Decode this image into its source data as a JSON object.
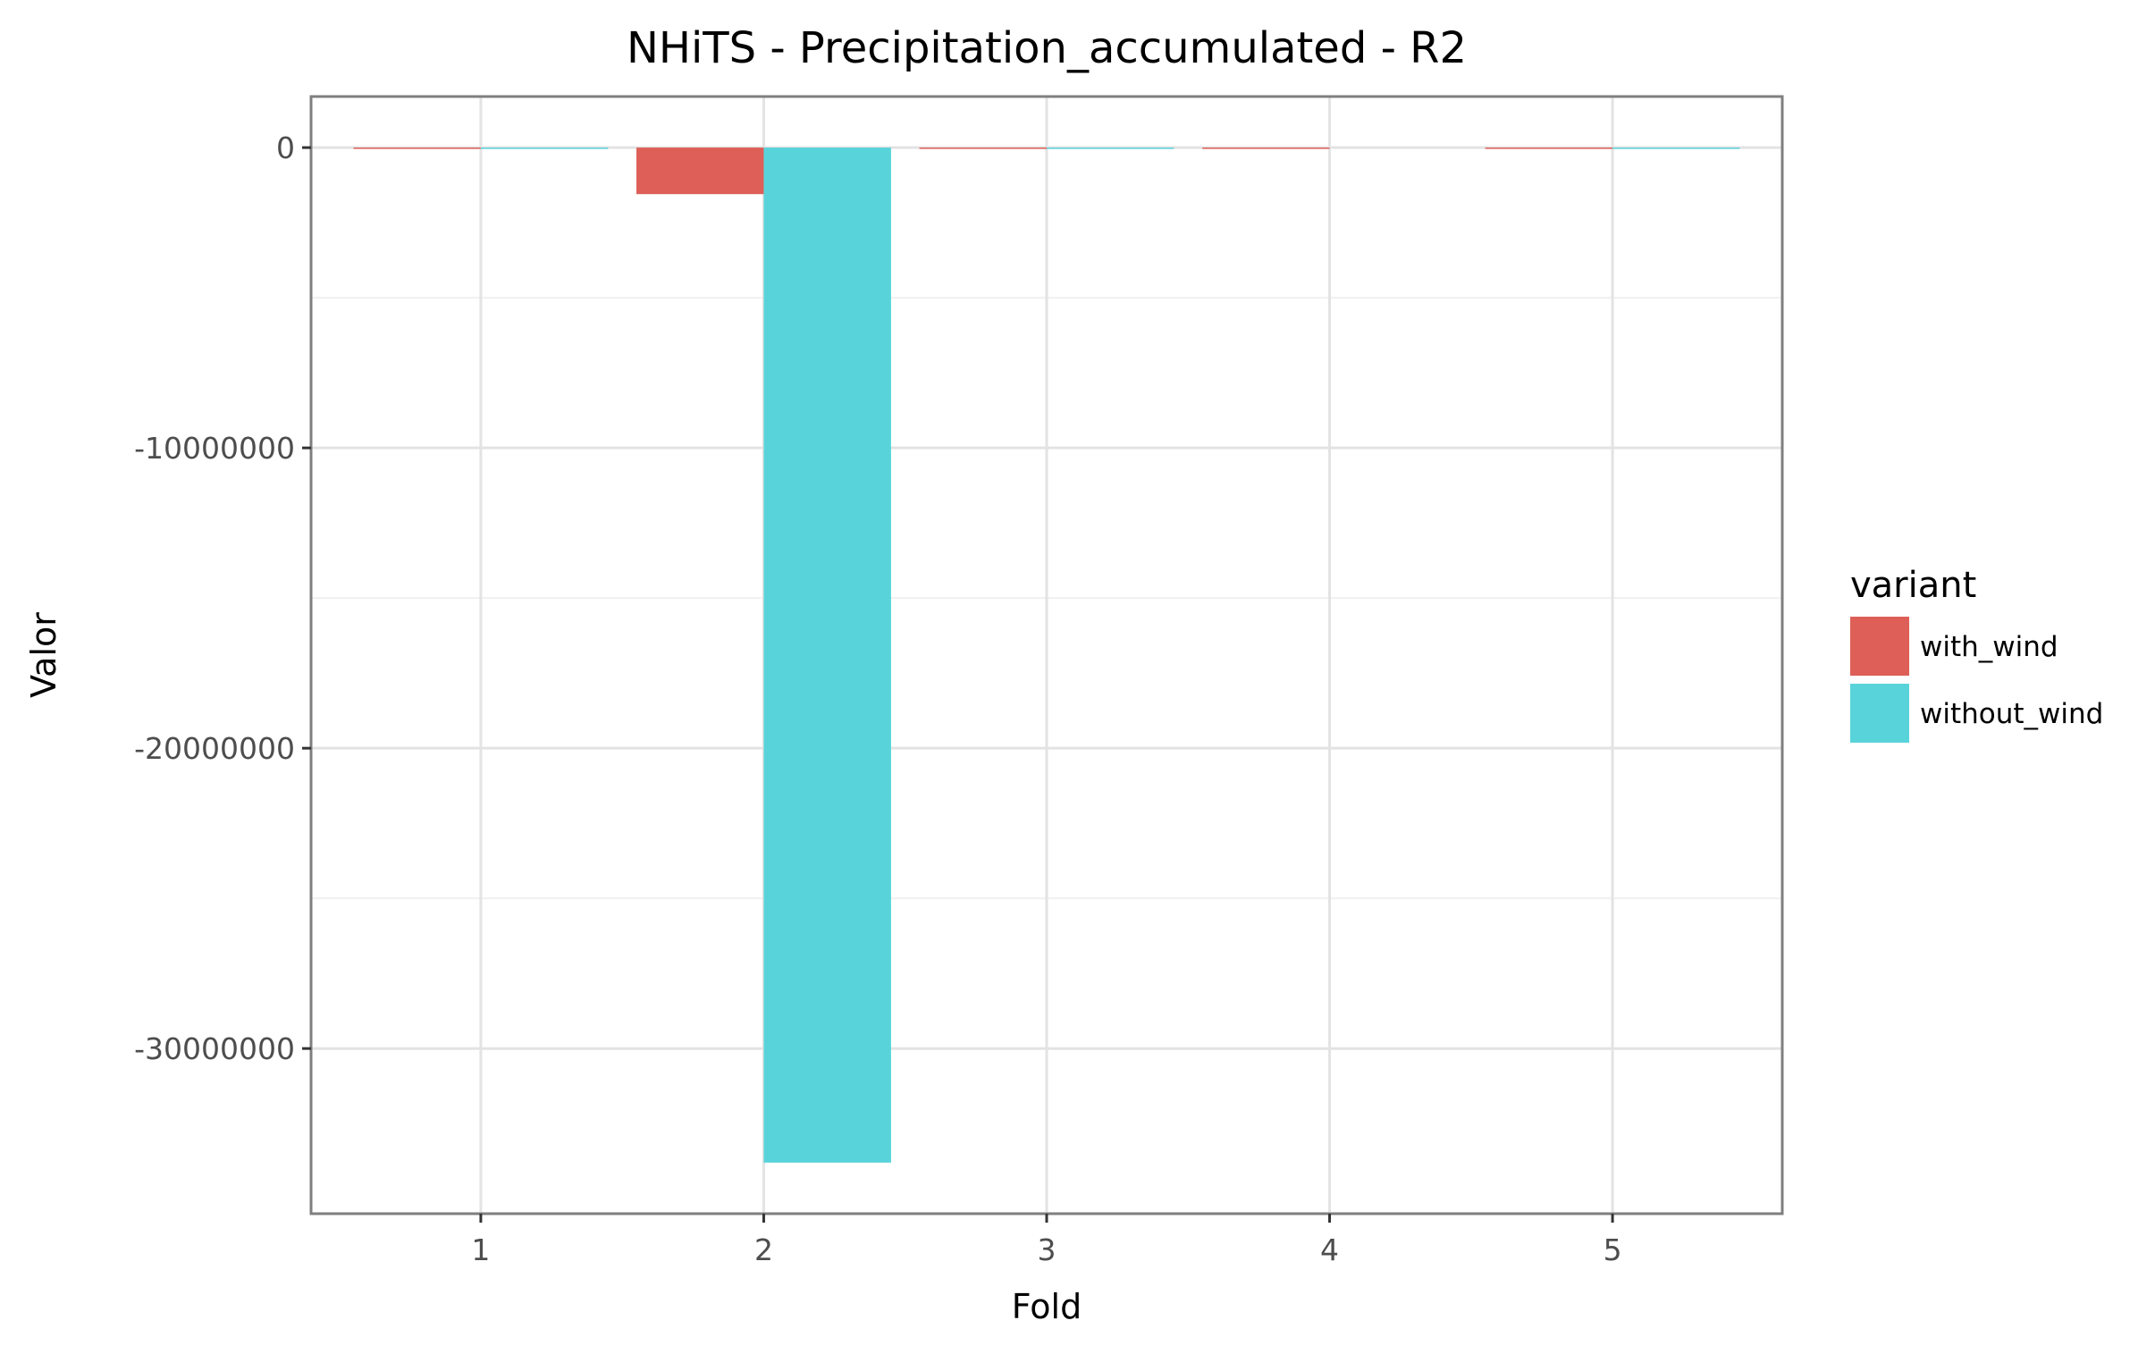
{
  "chart_data": {
    "type": "bar",
    "title": "NHiTS - Precipitation_accumulated - R2",
    "xlabel": "Fold",
    "ylabel": "Valor",
    "categories": [
      "1",
      "2",
      "3",
      "4",
      "5"
    ],
    "series": [
      {
        "name": "with_wind",
        "color": "#dd5f57",
        "values": [
          -5,
          -1550000,
          -40000,
          -30000,
          -35000
        ]
      },
      {
        "name": "without_wind",
        "color": "#59d3da",
        "values": [
          -5,
          -33800000,
          -25000,
          null,
          -30000
        ]
      }
    ],
    "ylim": [
      -35500000,
      1700000
    ],
    "yticks": [
      0,
      -10000000,
      -20000000,
      -30000000
    ],
    "ytick_labels": [
      "0",
      "-10000000",
      "-20000000",
      "-30000000"
    ],
    "legend": {
      "title": "variant",
      "position": "right"
    },
    "grid": true
  }
}
